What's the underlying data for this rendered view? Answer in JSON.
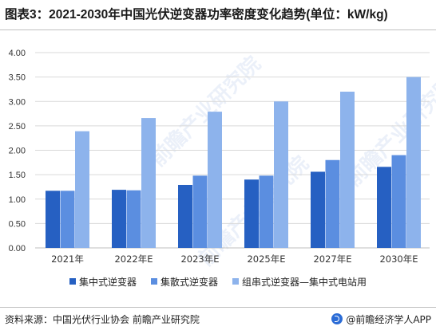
{
  "title": "图表3：2021-2030年中国光伏逆变器功率密度变化趋势(单位：kW/kg)",
  "watermark": "前瞻产业研究院",
  "chart_data": {
    "type": "bar",
    "categories": [
      "2021年",
      "2022年E",
      "2023年E",
      "2025年E",
      "2027年E",
      "2030年E"
    ],
    "series": [
      {
        "name": "集中式逆变器",
        "color": "#2660c2",
        "values": [
          1.17,
          1.19,
          1.29,
          1.4,
          1.56,
          1.66
        ]
      },
      {
        "name": "集散式逆变器",
        "color": "#5b8ee0",
        "values": [
          1.17,
          1.18,
          1.48,
          1.48,
          1.8,
          1.9
        ]
      },
      {
        "name": "组串式逆变器—集中式电站用",
        "color": "#8db3ec",
        "values": [
          2.39,
          2.66,
          2.79,
          3.0,
          3.2,
          3.5
        ]
      }
    ],
    "yticks": [
      "0.00",
      "0.50",
      "1.00",
      "1.50",
      "2.00",
      "2.50",
      "3.00",
      "3.50",
      "4.00"
    ],
    "ylim": [
      0,
      4
    ],
    "grid": true,
    "legend_position": "bottom"
  },
  "footer": {
    "source": "资料来源：中国光伏行业协会 前瞻产业研究院",
    "brand": "@前瞻经济学人APP"
  }
}
